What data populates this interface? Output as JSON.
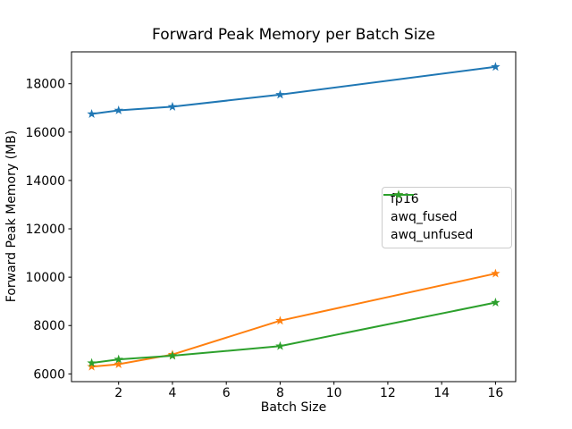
{
  "chart_data": {
    "type": "line",
    "title": "Forward Peak Memory per Batch Size",
    "xlabel": "Batch Size",
    "ylabel": "Forward Peak Memory (MB)",
    "x": [
      1,
      2,
      4,
      8,
      16
    ],
    "series": [
      {
        "name": "fp16",
        "color": "#1f77b4",
        "values": [
          16750,
          16900,
          17050,
          17550,
          18700
        ]
      },
      {
        "name": "awq_fused",
        "color": "#ff7f0e",
        "values": [
          6300,
          6400,
          6800,
          8200,
          10150
        ]
      },
      {
        "name": "awq_unfused",
        "color": "#2ca02c",
        "values": [
          6450,
          6600,
          6750,
          7150,
          8950
        ]
      }
    ],
    "xticks": [
      2,
      4,
      6,
      8,
      10,
      12,
      14,
      16
    ],
    "yticks": [
      6000,
      8000,
      10000,
      12000,
      14000,
      16000,
      18000
    ],
    "xlim": [
      0.25,
      16.75
    ],
    "ylim": [
      5680,
      19320
    ],
    "marker": "star",
    "grid": false,
    "legend_position": "center-right",
    "axis_color": "#000000",
    "background_color": "#ffffff"
  }
}
